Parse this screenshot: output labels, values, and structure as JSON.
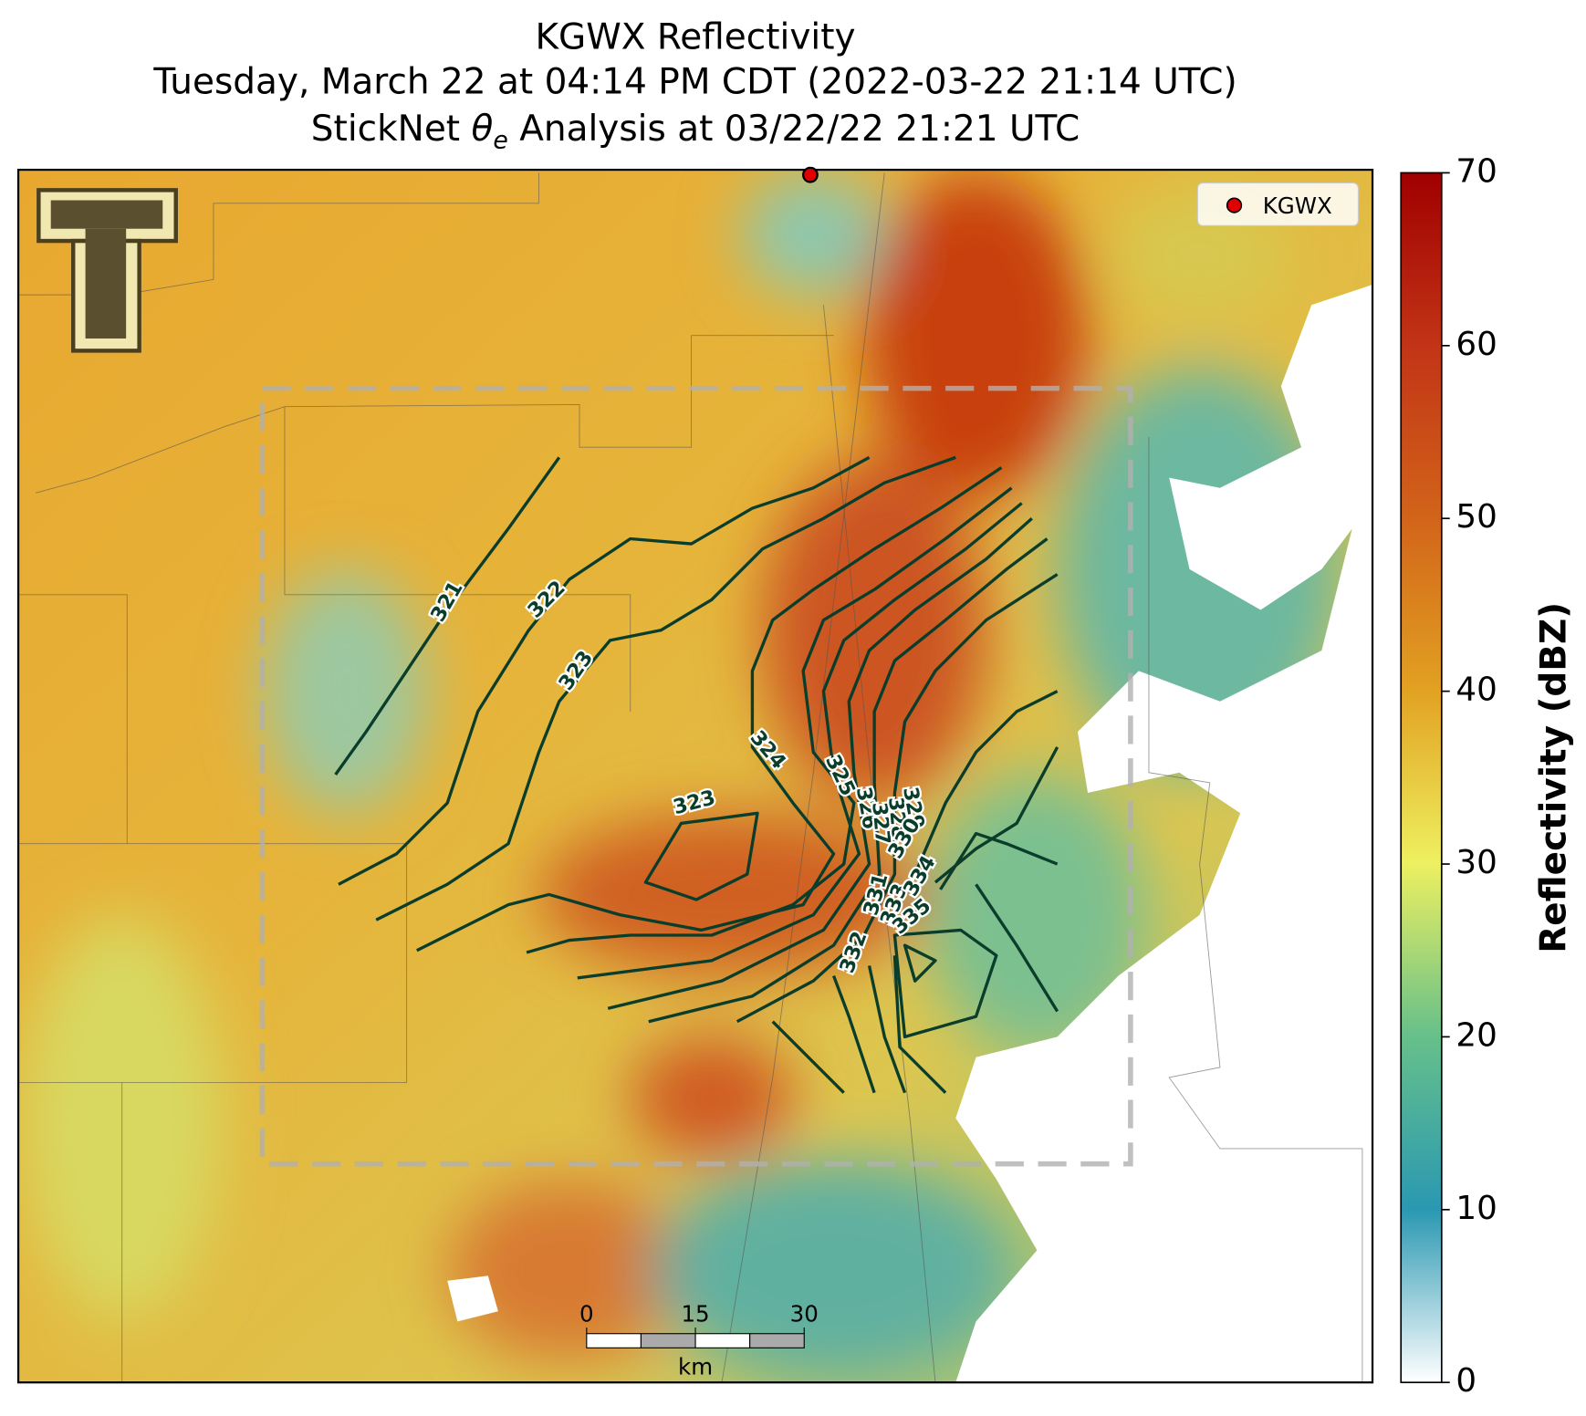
{
  "title_lines": [
    "KGWX Reflectivity",
    "Tuesday, March 22 at 04:14 PM CDT (2022-03-22 21:14 UTC)"
  ],
  "title_line3": [
    "StickNet ",
    "θ",
    "e",
    " Analysis at 03/22/22 21:21 UTC"
  ],
  "legend": {
    "label": "KGWX",
    "color": "#e00000"
  },
  "colorbar": {
    "label": "Reflectivity (dBZ)",
    "lim": [
      0,
      70
    ],
    "ticks": [
      0,
      10,
      20,
      30,
      40,
      50,
      60,
      70
    ]
  },
  "scale_bar": {
    "lim": [
      0,
      30
    ],
    "ticks": [
      0,
      15,
      30
    ],
    "unit": "km"
  },
  "contour_labels": [
    321,
    322,
    323,
    323,
    324,
    325,
    326,
    327,
    328,
    329,
    330,
    331,
    333,
    334,
    335,
    332
  ]
}
